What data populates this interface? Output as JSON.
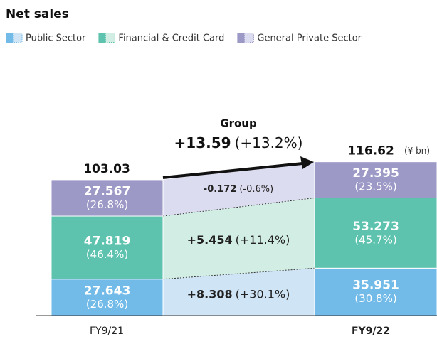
{
  "chart_data": {
    "type": "stacked_bar_bridge",
    "title": "Net sales",
    "unit": "(¥ bn)",
    "categories": [
      "FY9/21",
      "FY9/22"
    ],
    "series": [
      {
        "name": "Public Sector",
        "color": "#72bbe8",
        "band_color": "#cfe5f6",
        "values": [
          27.643,
          35.951
        ],
        "share_labels": [
          "(26.8%)",
          "(30.8%)"
        ],
        "change": "+8.308",
        "change_pct": "(+30.1%)"
      },
      {
        "name": "Financial & Credit Card",
        "color": "#5ec3ae",
        "band_color": "#d2eee4",
        "values": [
          47.819,
          53.273
        ],
        "share_labels": [
          "(46.4%)",
          "(45.7%)"
        ],
        "change": "+5.454",
        "change_pct": "(+11.4%)"
      },
      {
        "name": "General Private Sector",
        "color": "#9c99c6",
        "band_color": "#dcdcf0",
        "values": [
          27.567,
          27.395
        ],
        "share_labels": [
          "(26.8%)",
          "(23.5%)"
        ],
        "change": "-0.172",
        "change_pct": "(-0.6%)"
      }
    ],
    "totals": [
      103.03,
      116.62
    ],
    "group": {
      "label": "Group",
      "change": "+13.59",
      "change_pct": "(+13.2%)"
    }
  }
}
